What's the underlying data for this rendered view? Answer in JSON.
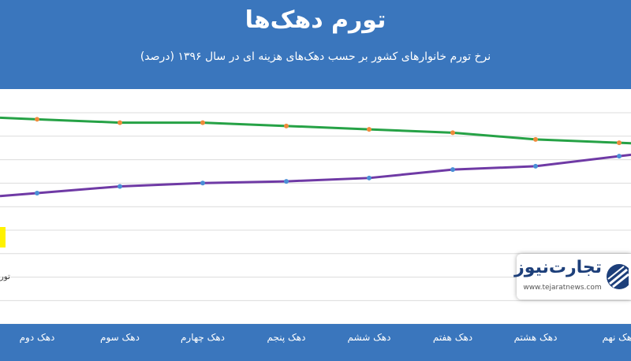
{
  "chart_data": {
    "type": "line",
    "title": "تورم دهک‌ها",
    "subtitle": "نرخ تورم خانوارهای کشور بر حسب دهک‌های هزینه ای در سال ۱۳۹۶ (درصد)",
    "categories": [
      "دهک دوم",
      "دهک سوم",
      "دهک چهارم",
      "دهک پنجم",
      "دهک ششم",
      "دهک هفتم",
      "دهک هشتم",
      "دهک نهم"
    ],
    "series": [
      {
        "values": [
          9.1,
          9.0,
          9.0,
          8.9,
          8.8,
          8.7,
          8.5,
          8.4
        ],
        "color": "#26a246",
        "marker_color": "#f08a3c"
      },
      {
        "values": [
          6.9,
          7.1,
          7.2,
          7.25,
          7.35,
          7.6,
          7.7,
          8.0
        ],
        "color": "#6f3aa5",
        "marker_color": "#4a8fd6"
      }
    ],
    "partial_series_label": "تور",
    "ylim": [
      3.0,
      10.0
    ],
    "grid": true,
    "legend": "none"
  },
  "watermark": {
    "brand": "تجارت‌نیوز",
    "url": "www.tejaratnews.com"
  }
}
